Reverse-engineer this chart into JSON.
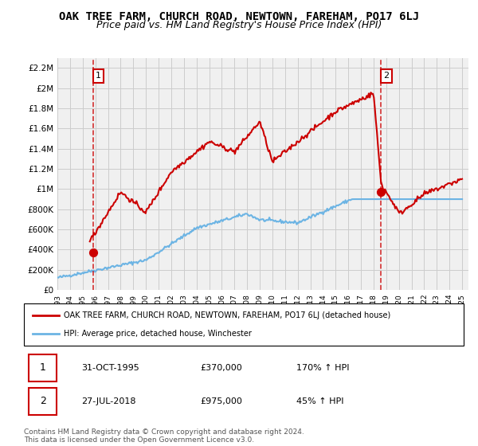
{
  "title": "OAK TREE FARM, CHURCH ROAD, NEWTOWN, FAREHAM, PO17 6LJ",
  "subtitle": "Price paid vs. HM Land Registry's House Price Index (HPI)",
  "ylim": [
    0,
    2300000
  ],
  "xlim_start": 1993.0,
  "xlim_end": 2025.5,
  "yticks": [
    0,
    200000,
    400000,
    600000,
    800000,
    1000000,
    1200000,
    1400000,
    1600000,
    1800000,
    2000000,
    2200000
  ],
  "ytick_labels": [
    "£0",
    "£200K",
    "£400K",
    "£600K",
    "£800K",
    "£1M",
    "£1.2M",
    "£1.4M",
    "£1.6M",
    "£1.8M",
    "£2M",
    "£2.2M"
  ],
  "xticks": [
    1993,
    1994,
    1995,
    1996,
    1997,
    1998,
    1999,
    2000,
    2001,
    2002,
    2003,
    2004,
    2005,
    2006,
    2007,
    2008,
    2009,
    2010,
    2011,
    2012,
    2013,
    2014,
    2015,
    2016,
    2017,
    2018,
    2019,
    2020,
    2021,
    2022,
    2023,
    2024,
    2025
  ],
  "hpi_color": "#6cb4e4",
  "property_color": "#cc0000",
  "dot_color": "#cc0000",
  "dashed_color": "#cc0000",
  "grid_color": "#cccccc",
  "background_color": "#f0f0f0",
  "sale1_x": 1995.833,
  "sale1_y": 370000,
  "sale1_label": "1",
  "sale2_x": 2018.57,
  "sale2_y": 975000,
  "sale2_label": "2",
  "legend_property": "OAK TREE FARM, CHURCH ROAD, NEWTOWN, FAREHAM, PO17 6LJ (detached house)",
  "legend_hpi": "HPI: Average price, detached house, Winchester",
  "table_row1_num": "1",
  "table_row1_date": "31-OCT-1995",
  "table_row1_price": "£370,000",
  "table_row1_hpi": "170% ↑ HPI",
  "table_row2_num": "2",
  "table_row2_date": "27-JUL-2018",
  "table_row2_price": "£975,000",
  "table_row2_hpi": "45% ↑ HPI",
  "footnote": "Contains HM Land Registry data © Crown copyright and database right 2024.\nThis data is licensed under the Open Government Licence v3.0.",
  "title_fontsize": 10,
  "subtitle_fontsize": 9
}
